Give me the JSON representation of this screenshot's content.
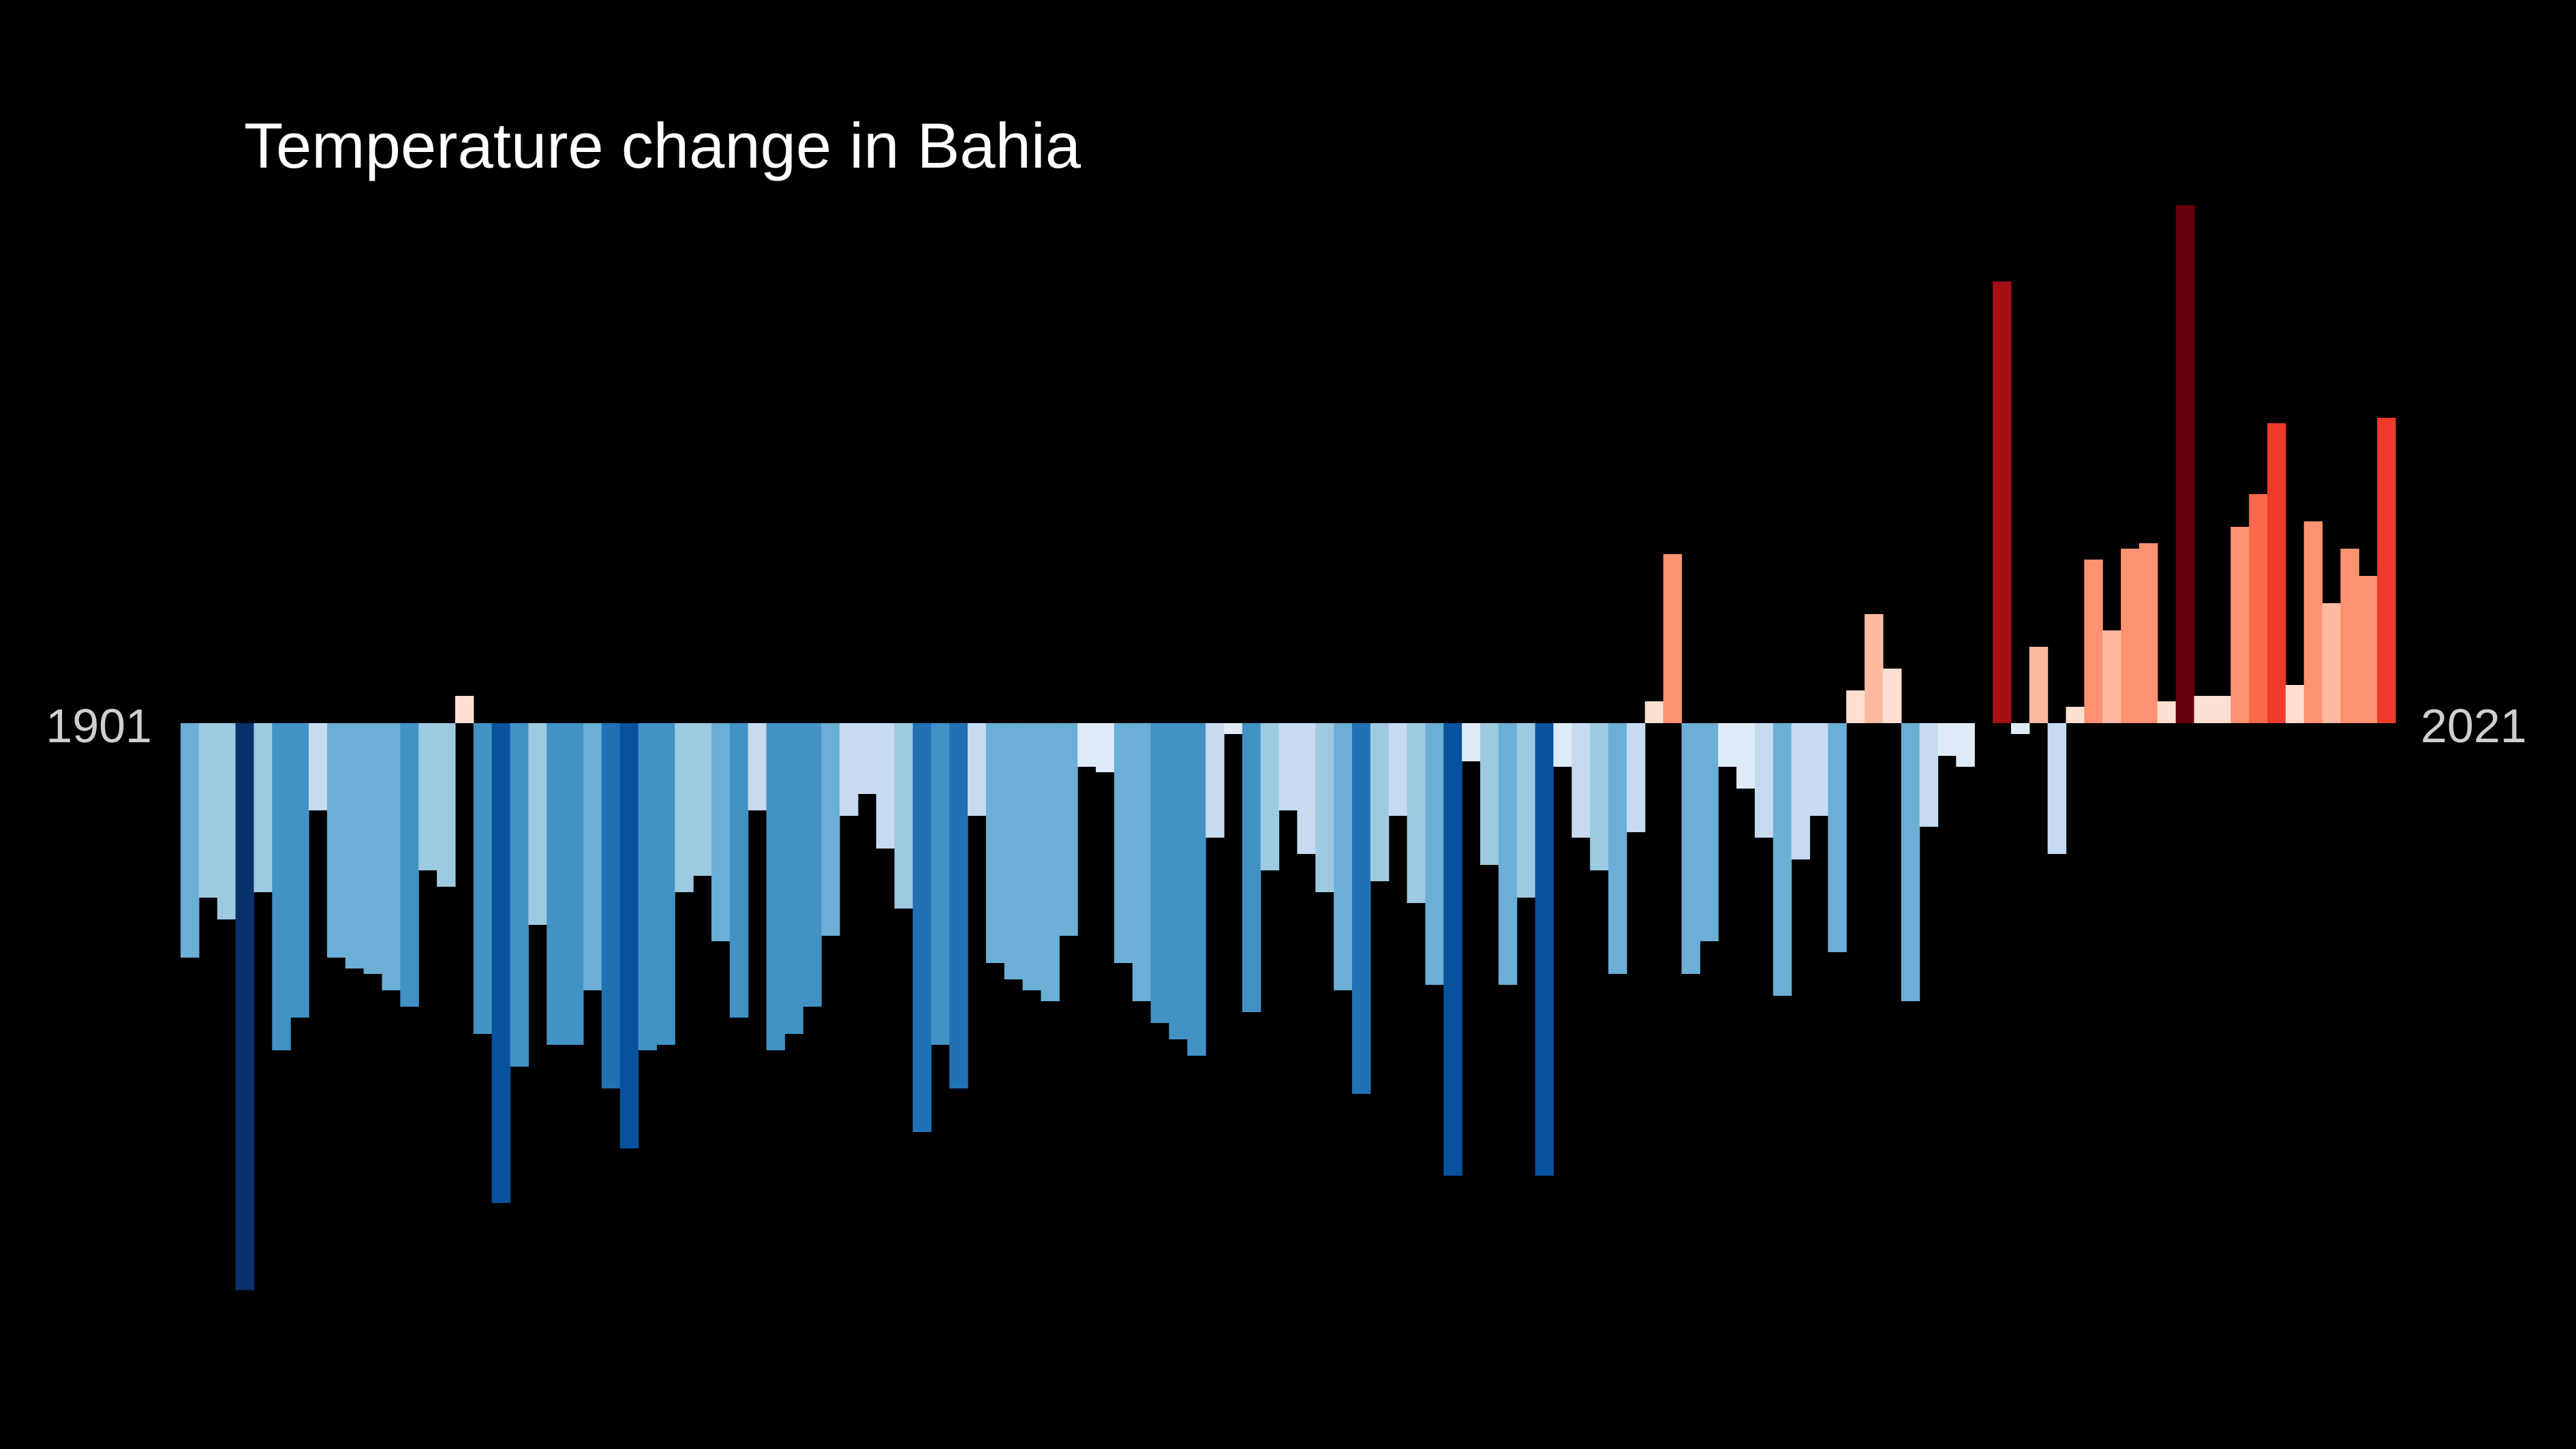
{
  "chart_data": {
    "type": "bar",
    "title": "Temperature change in Bahia",
    "start_label": "1901",
    "end_label": "2021",
    "background": "#000000",
    "xlabel": "",
    "ylabel": "",
    "grid": false,
    "legend": "none",
    "categories": [
      1901,
      1902,
      1903,
      1904,
      1905,
      1906,
      1907,
      1908,
      1909,
      1910,
      1911,
      1912,
      1913,
      1914,
      1915,
      1916,
      1917,
      1918,
      1919,
      1920,
      1921,
      1922,
      1923,
      1924,
      1925,
      1926,
      1927,
      1928,
      1929,
      1930,
      1931,
      1932,
      1933,
      1934,
      1935,
      1936,
      1937,
      1938,
      1939,
      1940,
      1941,
      1942,
      1943,
      1944,
      1945,
      1946,
      1947,
      1948,
      1949,
      1950,
      1951,
      1952,
      1953,
      1954,
      1955,
      1956,
      1957,
      1958,
      1959,
      1960,
      1961,
      1962,
      1963,
      1964,
      1965,
      1966,
      1967,
      1968,
      1969,
      1970,
      1971,
      1972,
      1973,
      1974,
      1975,
      1976,
      1977,
      1978,
      1979,
      1980,
      1981,
      1982,
      1983,
      1984,
      1985,
      1986,
      1987,
      1988,
      1989,
      1990,
      1991,
      1992,
      1993,
      1994,
      1995,
      1996,
      1997,
      1998,
      1999,
      2000,
      2001,
      2002,
      2003,
      2004,
      2005,
      2006,
      2007,
      2008,
      2009,
      2010,
      2011,
      2012,
      2013,
      2014,
      2015,
      2016,
      2017,
      2018,
      2019,
      2020,
      2021
    ],
    "values": [
      -0.43,
      -0.32,
      -0.36,
      -1.04,
      -0.31,
      -0.6,
      -0.54,
      -0.16,
      -0.43,
      -0.45,
      -0.46,
      -0.49,
      -0.52,
      -0.27,
      -0.3,
      0.05,
      -0.57,
      -0.88,
      -0.63,
      -0.37,
      -0.59,
      -0.59,
      -0.49,
      -0.67,
      -0.78,
      -0.6,
      -0.59,
      -0.31,
      -0.28,
      -0.4,
      -0.54,
      -0.16,
      -0.6,
      -0.57,
      -0.52,
      -0.39,
      -0.17,
      -0.13,
      -0.23,
      -0.34,
      -0.75,
      -0.59,
      -0.67,
      -0.17,
      -0.44,
      -0.47,
      -0.49,
      -0.51,
      -0.39,
      -0.08,
      -0.09,
      -0.44,
      -0.51,
      -0.55,
      -0.58,
      -0.61,
      -0.21,
      -0.02,
      -0.53,
      -0.27,
      -0.16,
      -0.24,
      -0.31,
      -0.49,
      -0.68,
      -0.29,
      -0.17,
      -0.33,
      -0.48,
      -0.83,
      -0.07,
      -0.26,
      -0.48,
      -0.32,
      -0.83,
      -0.08,
      -0.21,
      -0.27,
      -0.46,
      -0.2,
      0.04,
      0.31,
      -0.46,
      -0.4,
      -0.08,
      -0.12,
      -0.21,
      -0.5,
      -0.25,
      -0.17,
      -0.42,
      0.06,
      0.2,
      0.1,
      -0.51,
      -0.19,
      -0.06,
      -0.08,
      -0.0,
      0.81,
      -0.02,
      0.14,
      -0.24,
      0.03,
      0.3,
      0.17,
      0.32,
      0.33,
      0.04,
      0.95,
      0.05,
      0.05,
      0.36,
      0.42,
      0.55,
      0.07,
      0.37,
      0.22,
      0.32,
      0.27,
      0.56
    ],
    "ylim": [
      -1.27,
      1.27
    ],
    "color_scale": {
      "negative": [
        "#08306b",
        "#08519c",
        "#2171b5",
        "#4292c6",
        "#6baed6",
        "#9ecae1",
        "#c6dbef",
        "#deebf7"
      ],
      "positive": [
        "#fee0d2",
        "#fcbba1",
        "#fc9272",
        "#fb6a4a",
        "#ef3b2c",
        "#cb181d",
        "#a50f15",
        "#67000d"
      ]
    }
  }
}
